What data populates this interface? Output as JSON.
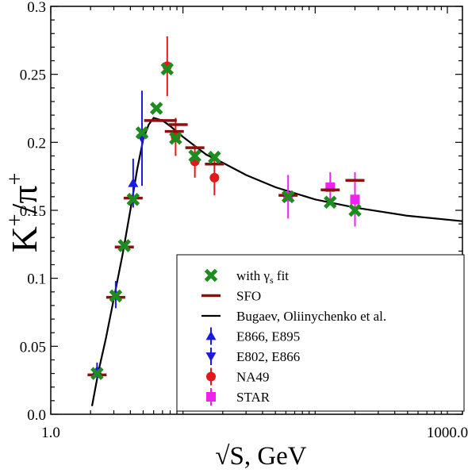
{
  "chart_data": {
    "type": "scatter",
    "xscale": "log",
    "xlim": [
      1.0,
      1300
    ],
    "ylim": [
      0.0,
      0.3
    ],
    "xlabel": "√S, GeV",
    "ylabel_main": "K",
    "ylabel_sup1": "+",
    "ylabel_mid": "/π",
    "ylabel_sup2": "+",
    "x_tick_labels": [
      {
        "value": 1.0,
        "label": "1.0"
      },
      {
        "value": 1000.0,
        "label": "1000.0"
      }
    ],
    "y_tick_labels": [
      {
        "value": 0.0,
        "label": "0.0"
      },
      {
        "value": 0.05,
        "label": "0.05"
      },
      {
        "value": 0.1,
        "label": "0.1"
      },
      {
        "value": 0.15,
        "label": "0.15"
      },
      {
        "value": 0.2,
        "label": "0.2"
      },
      {
        "value": 0.25,
        "label": "0.25"
      },
      {
        "value": 0.3,
        "label": "0.3"
      }
    ],
    "legend_position": "bottom-right",
    "series": [
      {
        "name": "with γs fit",
        "marker": "x",
        "color": "#1e8c1e",
        "points": [
          {
            "x": 2.24,
            "y": 0.03
          },
          {
            "x": 3.1,
            "y": 0.087
          },
          {
            "x": 3.6,
            "y": 0.124
          },
          {
            "x": 4.2,
            "y": 0.158
          },
          {
            "x": 4.9,
            "y": 0.207
          },
          {
            "x": 6.3,
            "y": 0.225
          },
          {
            "x": 7.6,
            "y": 0.254
          },
          {
            "x": 8.8,
            "y": 0.203
          },
          {
            "x": 12.3,
            "y": 0.19
          },
          {
            "x": 17.3,
            "y": 0.189
          },
          {
            "x": 62.4,
            "y": 0.16
          },
          {
            "x": 130,
            "y": 0.156
          },
          {
            "x": 200,
            "y": 0.15
          }
        ]
      },
      {
        "name": "SFO",
        "marker": "hbar",
        "color": "#8b1010",
        "points": [
          {
            "x": 2.24,
            "y": 0.029
          },
          {
            "x": 3.1,
            "y": 0.086
          },
          {
            "x": 3.6,
            "y": 0.123
          },
          {
            "x": 4.2,
            "y": 0.159
          },
          {
            "x": 6.0,
            "y": 0.216
          },
          {
            "x": 7.6,
            "y": 0.216
          },
          {
            "x": 9.2,
            "y": 0.213
          },
          {
            "x": 8.6,
            "y": 0.208
          },
          {
            "x": 12.3,
            "y": 0.196
          },
          {
            "x": 17.3,
            "y": 0.184
          },
          {
            "x": 62.4,
            "y": 0.161
          },
          {
            "x": 130,
            "y": 0.165
          },
          {
            "x": 200,
            "y": 0.172
          }
        ]
      },
      {
        "name": "E866, E895",
        "marker": "triangle-up",
        "color": "#1a1ae0",
        "points": [
          {
            "x": 2.24,
            "y": 0.032,
            "err": 0.006
          },
          {
            "x": 3.1,
            "y": 0.088,
            "err": 0.01
          },
          {
            "x": 4.2,
            "y": 0.17,
            "err": 0.018
          }
        ]
      },
      {
        "name": "E802, E866",
        "marker": "triangle-down",
        "color": "#1a1ae0",
        "points": [
          {
            "x": 4.9,
            "y": 0.203,
            "err": 0.035
          }
        ]
      },
      {
        "name": "NA49",
        "marker": "circle",
        "color": "#e01a1a",
        "points": [
          {
            "x": 7.6,
            "y": 0.256,
            "err": 0.022
          },
          {
            "x": 8.8,
            "y": 0.204,
            "err": 0.014
          },
          {
            "x": 12.3,
            "y": 0.186,
            "err": 0.012
          },
          {
            "x": 17.3,
            "y": 0.174,
            "err": 0.013
          }
        ]
      },
      {
        "name": "STAR",
        "marker": "square",
        "color": "#ee22ee",
        "points": [
          {
            "x": 62.4,
            "y": 0.16,
            "err": 0.016
          },
          {
            "x": 130,
            "y": 0.167,
            "err": 0.011
          },
          {
            "x": 200,
            "y": 0.158,
            "err": 0.02
          }
        ]
      },
      {
        "name": "Bugaev, Oliinychenko et al.",
        "marker": "line",
        "color": "#000000",
        "points": [
          {
            "x": 2.05,
            "y": 0.006
          },
          {
            "x": 2.3,
            "y": 0.032
          },
          {
            "x": 2.6,
            "y": 0.055
          },
          {
            "x": 3.0,
            "y": 0.085
          },
          {
            "x": 3.5,
            "y": 0.118
          },
          {
            "x": 4.0,
            "y": 0.15
          },
          {
            "x": 4.5,
            "y": 0.18
          },
          {
            "x": 5.0,
            "y": 0.202
          },
          {
            "x": 5.5,
            "y": 0.213
          },
          {
            "x": 6.0,
            "y": 0.218
          },
          {
            "x": 7.0,
            "y": 0.216
          },
          {
            "x": 8.0,
            "y": 0.212
          },
          {
            "x": 10,
            "y": 0.204
          },
          {
            "x": 15,
            "y": 0.191
          },
          {
            "x": 20,
            "y": 0.185
          },
          {
            "x": 30,
            "y": 0.176
          },
          {
            "x": 50,
            "y": 0.167
          },
          {
            "x": 100,
            "y": 0.158
          },
          {
            "x": 200,
            "y": 0.152
          },
          {
            "x": 500,
            "y": 0.146
          },
          {
            "x": 1300,
            "y": 0.142
          }
        ]
      }
    ]
  },
  "legend_order": [
    {
      "name": "with γs fit",
      "marker": "x",
      "color": "#1e8c1e",
      "text_main": "with γ",
      "text_sub": "s",
      "text_rest": " fit"
    },
    {
      "name": "SFO",
      "marker": "hbar",
      "color": "#8b1010",
      "text_main": "SFO",
      "text_sub": "",
      "text_rest": ""
    },
    {
      "name": "Bugaev, Oliinychenko et al.",
      "marker": "line",
      "color": "#000000",
      "text_main": "Bugaev, Oliinychenko et al.",
      "text_sub": "",
      "text_rest": ""
    },
    {
      "name": "E866, E895",
      "marker": "triangle-up",
      "color": "#1a1ae0",
      "text_main": "E866, E895",
      "text_sub": "",
      "text_rest": ""
    },
    {
      "name": "E802, E866",
      "marker": "triangle-down",
      "color": "#1a1ae0",
      "text_main": "E802, E866",
      "text_sub": "",
      "text_rest": ""
    },
    {
      "name": "NA49",
      "marker": "circle",
      "color": "#e01a1a",
      "text_main": "NA49",
      "text_sub": "",
      "text_rest": ""
    },
    {
      "name": "STAR",
      "marker": "square",
      "color": "#ee22ee",
      "text_main": "STAR",
      "text_sub": "",
      "text_rest": ""
    }
  ]
}
